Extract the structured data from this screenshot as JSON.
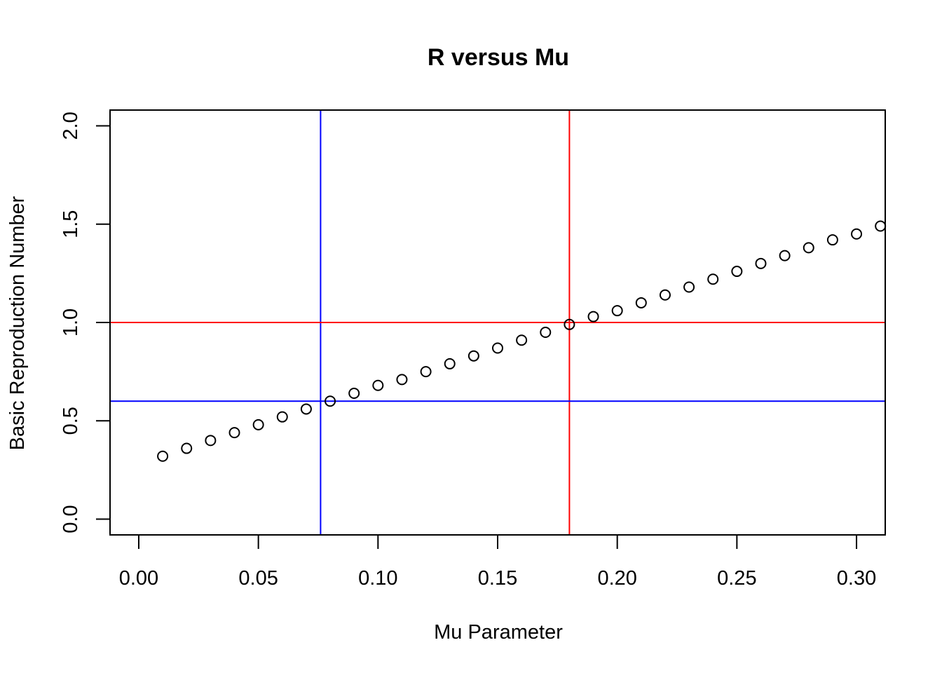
{
  "chart_data": {
    "type": "scatter",
    "title": "R versus Mu",
    "xlabel": "Mu Parameter",
    "ylabel": "Basic Reproduction Number",
    "xlim": [
      -0.012,
      0.312
    ],
    "ylim": [
      -0.08,
      2.08
    ],
    "x_ticks": [
      0.0,
      0.05,
      0.1,
      0.15,
      0.2,
      0.25,
      0.3
    ],
    "x_tick_labels": [
      "0.00",
      "0.05",
      "0.10",
      "0.15",
      "0.20",
      "0.25",
      "0.30"
    ],
    "y_ticks": [
      0.0,
      0.5,
      1.0,
      1.5,
      2.0
    ],
    "y_tick_labels": [
      "0.0",
      "0.5",
      "1.0",
      "1.5",
      "2.0"
    ],
    "grid": false,
    "series": [
      {
        "x": [
          0.01,
          0.02,
          0.03,
          0.04,
          0.05,
          0.06,
          0.07,
          0.08,
          0.09,
          0.1,
          0.11,
          0.12,
          0.13,
          0.14,
          0.15,
          0.16,
          0.17,
          0.18,
          0.19,
          0.2,
          0.21,
          0.22,
          0.23,
          0.24,
          0.25,
          0.26,
          0.27,
          0.28,
          0.29,
          0.3,
          0.31
        ],
        "y": [
          0.32,
          0.36,
          0.4,
          0.44,
          0.48,
          0.52,
          0.56,
          0.6,
          0.64,
          0.68,
          0.71,
          0.75,
          0.79,
          0.83,
          0.87,
          0.91,
          0.95,
          0.99,
          1.03,
          1.06,
          1.1,
          1.14,
          1.18,
          1.22,
          1.26,
          1.3,
          1.34,
          1.38,
          1.42,
          1.45,
          1.49
        ]
      }
    ],
    "reference_lines": {
      "vertical": [
        {
          "x": 0.076,
          "color": "#0000ff"
        },
        {
          "x": 0.18,
          "color": "#ff0000"
        }
      ],
      "horizontal": [
        {
          "y": 1.0,
          "color": "#ff0000"
        },
        {
          "y": 0.6,
          "color": "#0000ff"
        }
      ]
    },
    "point_color": "#000000"
  }
}
